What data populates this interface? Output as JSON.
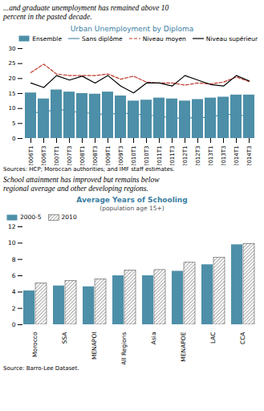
{
  "chart_data": [
    {
      "type": "bar",
      "title": "Urban Unemployment by Diploma",
      "annotations": [
        "...and graduate unemployment has remained above 10\npercent in the pasted decade.",
        "Sources: HCP; Moroccan authorities; and IMF staff estimates."
      ],
      "categories": [
        "2006T1",
        "2006T3",
        "2007T1",
        "2007T3",
        "2008T1",
        "2008T3",
        "2009T1",
        "2009T3",
        "2010T1",
        "2010T3",
        "2011T1",
        "2011T3",
        "2012T1",
        "2012T3",
        "2013T1",
        "2013T3",
        "2014T1",
        "2014T3"
      ],
      "series": [
        {
          "name": "Ensemble",
          "type": "bar",
          "color": "#4d8fa8",
          "values": [
            15.2,
            13.2,
            16.2,
            15.5,
            15.0,
            14.8,
            15.5,
            14.2,
            12.5,
            12.8,
            13.5,
            13.2,
            12.5,
            13.0,
            13.5,
            13.8,
            14.5,
            14.5
          ]
        },
        {
          "name": "Sans diplôme",
          "type": "line",
          "color": "#4d8fa8",
          "line_style": "solid",
          "values": [
            8.8,
            8.5,
            10.0,
            9.0,
            8.7,
            8.2,
            8.0,
            8.5,
            8.2,
            7.8,
            7.5,
            6.8,
            6.8,
            7.0,
            7.0,
            8.2,
            7.8,
            7.5
          ]
        },
        {
          "name": "Niveau moyen",
          "type": "line",
          "color": "#c0392b",
          "line_style": "dashed",
          "values": [
            22.0,
            24.8,
            21.5,
            21.0,
            21.0,
            21.0,
            21.5,
            19.8,
            20.8,
            18.8,
            18.5,
            18.5,
            17.8,
            18.5,
            18.2,
            18.8,
            20.5,
            19.0
          ]
        },
        {
          "name": "Niveau supérieur",
          "type": "line",
          "color": "black",
          "line_style": "solid",
          "values": [
            18.5,
            17.0,
            21.0,
            19.5,
            20.8,
            18.5,
            21.0,
            17.5,
            15.2,
            18.5,
            18.5,
            17.5,
            21.0,
            19.5,
            18.0,
            17.5,
            21.0,
            19.2
          ]
        }
      ],
      "ylim": [
        0,
        30
      ],
      "yticks": [
        0,
        5,
        10,
        15,
        20,
        25,
        30
      ],
      "grid": false,
      "legend": "upper right"
    },
    {
      "type": "bar",
      "title": "Average Years of Schooling",
      "subtitle": "(population age 15+)",
      "annotations": [
        "School attainment has improved but remains below\nregional average and other developing regions.",
        "Source: Barro-Lee Dataset."
      ],
      "categories": [
        "Morocco",
        "SSA",
        "MENAPOI",
        "All Regions",
        "Asia",
        "MENAPOE",
        "LAC",
        "CCA"
      ],
      "series": [
        {
          "name": "2000-5",
          "color": "#4d8fa8",
          "values": [
            4.15,
            4.75,
            4.65,
            6.0,
            6.0,
            6.55,
            7.35,
            9.8
          ]
        },
        {
          "name": "2010",
          "values": [
            5.05,
            5.35,
            5.55,
            6.65,
            6.7,
            7.6,
            8.2,
            9.9
          ]
        }
      ],
      "ylim": [
        0,
        12
      ],
      "yticks": [
        0,
        2,
        4,
        6,
        8,
        10,
        12
      ],
      "grid": false,
      "legend": "upper left"
    }
  ]
}
